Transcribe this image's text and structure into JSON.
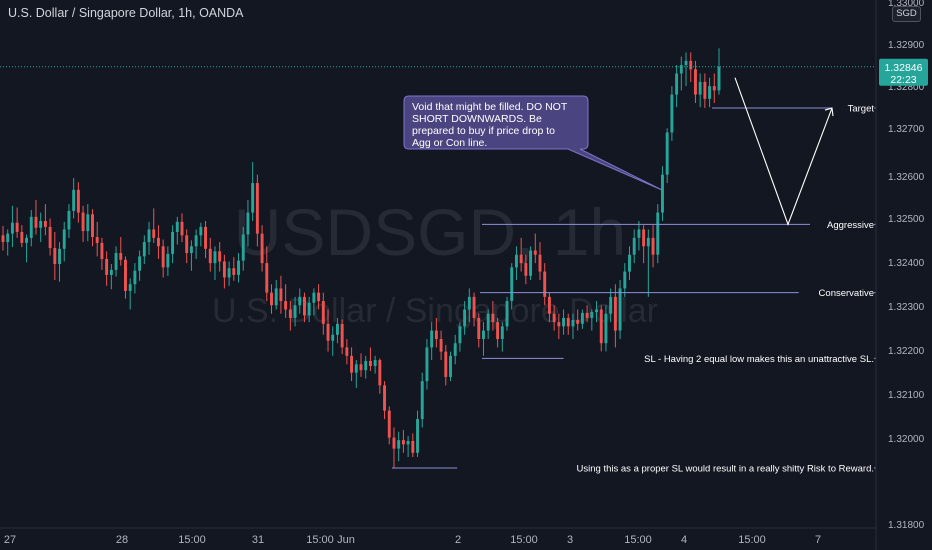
{
  "header": {
    "title": "U.S. Dollar / Singapore Dollar, 1h, OANDA",
    "currency": "SGD"
  },
  "watermark": {
    "symbol": "USDSGD, 1h",
    "description": "U.S. Dollar / Singapore Dollar"
  },
  "colors": {
    "background": "#131722",
    "grid": "#1e222d",
    "up": "#26a69a",
    "down": "#ef5350",
    "level_line": "#8e90d8",
    "label_bg": "#7e57c2",
    "last_price_bg": "#26a69a"
  },
  "last_price": {
    "value": 1.32846,
    "label": "1.32846",
    "countdown": "22:23"
  },
  "annotation": {
    "lines": [
      "Void that might be filled. DO NOT",
      "SHORT DOWNWARDS. Be",
      "prepared to buy if price drop to",
      "Agg or Con line."
    ]
  },
  "levels": [
    {
      "name": "Target",
      "value": 1.32748,
      "label": "1.32748",
      "text": "Target"
    },
    {
      "name": "Aggressive",
      "value": 1.32472,
      "label": "1.32472",
      "text": "Aggressive"
    },
    {
      "name": "Conservative",
      "value": 1.3231,
      "label": "1.32310",
      "text": "Conservative"
    },
    {
      "name": "SL",
      "value": 1.32154,
      "label": "1.32154",
      "text": "SL - Having 2 equal low makes this an unattractive SL."
    },
    {
      "name": "Low",
      "value": 1.31894,
      "label": "1.31894",
      "text": "Using this as a proper SL would result in a really shitty Risk to Reward."
    }
  ],
  "chart_data": {
    "type": "candlestick",
    "title": "U.S. Dollar / Singapore Dollar, 1h, OANDA",
    "y_axis": {
      "range": [
        1.3179,
        1.3302
      ],
      "ticks": [
        "1.33000",
        "1.32900",
        "1.32800",
        "1.32700",
        "1.32600",
        "1.32500",
        "1.32400",
        "1.32300",
        "1.32200",
        "1.32100",
        "1.32000",
        "1.31800"
      ]
    },
    "x_axis": {
      "ticks": [
        "27",
        "28",
        "15:00",
        "31",
        "15:00",
        "Jun",
        "2",
        "15:00",
        "3",
        "15:00",
        "4",
        "15:00",
        "7"
      ]
    },
    "candles": [
      [
        1.32446,
        1.32468,
        1.3241,
        1.3243
      ],
      [
        1.3243,
        1.3246,
        1.32398,
        1.3245
      ],
      [
        1.3245,
        1.32516,
        1.32418,
        1.32476
      ],
      [
        1.32476,
        1.32512,
        1.3244,
        1.32454
      ],
      [
        1.32454,
        1.3247,
        1.32418,
        1.32428
      ],
      [
        1.32428,
        1.32448,
        1.32382,
        1.3244
      ],
      [
        1.3244,
        1.32506,
        1.3242,
        1.3249
      ],
      [
        1.3249,
        1.3253,
        1.32448,
        1.32464
      ],
      [
        1.32464,
        1.325,
        1.3243,
        1.3248
      ],
      [
        1.3248,
        1.3252,
        1.32446,
        1.32466
      ],
      [
        1.32466,
        1.32486,
        1.32398,
        1.32416
      ],
      [
        1.32416,
        1.32454,
        1.3234,
        1.32378
      ],
      [
        1.32378,
        1.3243,
        1.32336,
        1.32414
      ],
      [
        1.32414,
        1.32478,
        1.32384,
        1.3246
      ],
      [
        1.3246,
        1.3252,
        1.3244,
        1.32504
      ],
      [
        1.32504,
        1.32582,
        1.32486,
        1.32554
      ],
      [
        1.32554,
        1.32572,
        1.32476,
        1.325
      ],
      [
        1.325,
        1.32516,
        1.3243,
        1.32456
      ],
      [
        1.32456,
        1.3252,
        1.32432,
        1.32496
      ],
      [
        1.32496,
        1.32508,
        1.3242,
        1.32442
      ],
      [
        1.32442,
        1.32478,
        1.32396,
        1.32428
      ],
      [
        1.32428,
        1.3244,
        1.32364,
        1.3239
      ],
      [
        1.3239,
        1.32408,
        1.32326,
        1.32352
      ],
      [
        1.32352,
        1.32378,
        1.32318,
        1.32364
      ],
      [
        1.32364,
        1.3242,
        1.32348,
        1.32404
      ],
      [
        1.32404,
        1.32442,
        1.32374,
        1.32388
      ],
      [
        1.32388,
        1.32396,
        1.32296,
        1.32314
      ],
      [
        1.32314,
        1.32344,
        1.3227,
        1.3233
      ],
      [
        1.3233,
        1.3238,
        1.32308,
        1.32362
      ],
      [
        1.32362,
        1.3241,
        1.32338,
        1.32396
      ],
      [
        1.32396,
        1.32446,
        1.32378,
        1.3243
      ],
      [
        1.3243,
        1.32478,
        1.324,
        1.3246
      ],
      [
        1.3246,
        1.3251,
        1.32428,
        1.3244
      ],
      [
        1.3244,
        1.3247,
        1.3239,
        1.3242
      ],
      [
        1.3242,
        1.32436,
        1.32346,
        1.3237
      ],
      [
        1.3237,
        1.3242,
        1.3235,
        1.32402
      ],
      [
        1.32402,
        1.3247,
        1.3238,
        1.32454
      ],
      [
        1.32454,
        1.3249,
        1.32424,
        1.32478
      ],
      [
        1.32478,
        1.32498,
        1.3243,
        1.32446
      ],
      [
        1.32446,
        1.3246,
        1.3238,
        1.32404
      ],
      [
        1.32404,
        1.32434,
        1.32362,
        1.3242
      ],
      [
        1.3242,
        1.3246,
        1.3239,
        1.32446
      ],
      [
        1.32446,
        1.32476,
        1.3242,
        1.32466
      ],
      [
        1.32466,
        1.3248,
        1.32392,
        1.32414
      ],
      [
        1.32414,
        1.3244,
        1.3236,
        1.3238
      ],
      [
        1.3238,
        1.3242,
        1.3234,
        1.32408
      ],
      [
        1.32408,
        1.3243,
        1.3236,
        1.32384
      ],
      [
        1.32384,
        1.324,
        1.3232,
        1.32346
      ],
      [
        1.32346,
        1.32384,
        1.32326,
        1.32368
      ],
      [
        1.32368,
        1.32394,
        1.32338,
        1.32352
      ],
      [
        1.32352,
        1.32404,
        1.32334,
        1.32386
      ],
      [
        1.32386,
        1.32466,
        1.32362,
        1.32448
      ],
      [
        1.32448,
        1.3253,
        1.3242,
        1.325
      ],
      [
        1.325,
        1.3262,
        1.3248,
        1.3257
      ],
      [
        1.3257,
        1.3259,
        1.3242,
        1.3245
      ],
      [
        1.3245,
        1.3247,
        1.3236,
        1.3238
      ],
      [
        1.3238,
        1.3242,
        1.3229,
        1.3231
      ],
      [
        1.3231,
        1.3233,
        1.3226,
        1.3228
      ],
      [
        1.3228,
        1.3234,
        1.3227,
        1.3232
      ],
      [
        1.3232,
        1.3235,
        1.3226,
        1.3229
      ],
      [
        1.3229,
        1.3233,
        1.3225,
        1.3227
      ],
      [
        1.3227,
        1.3229,
        1.3222,
        1.3225
      ],
      [
        1.3225,
        1.323,
        1.3223,
        1.3228
      ],
      [
        1.3228,
        1.3232,
        1.3226,
        1.323
      ],
      [
        1.323,
        1.3231,
        1.3224,
        1.32256
      ],
      [
        1.32256,
        1.323,
        1.3224,
        1.32286
      ],
      [
        1.32286,
        1.3232,
        1.32256,
        1.3231
      ],
      [
        1.3231,
        1.3233,
        1.3227,
        1.3229
      ],
      [
        1.3229,
        1.3231,
        1.3221,
        1.32236
      ],
      [
        1.32236,
        1.3227,
        1.3217,
        1.32196
      ],
      [
        1.32196,
        1.3223,
        1.3216,
        1.3221
      ],
      [
        1.3221,
        1.3225,
        1.3219,
        1.32236
      ],
      [
        1.32236,
        1.32246,
        1.32164,
        1.3218
      ],
      [
        1.3218,
        1.322,
        1.3214,
        1.3216
      ],
      [
        1.3216,
        1.3218,
        1.321,
        1.3212
      ],
      [
        1.3212,
        1.3215,
        1.32084,
        1.3214
      ],
      [
        1.3214,
        1.32166,
        1.3211,
        1.32126
      ],
      [
        1.32126,
        1.3216,
        1.32106,
        1.32148
      ],
      [
        1.32148,
        1.3218,
        1.32124,
        1.32136
      ],
      [
        1.32136,
        1.3216,
        1.32118,
        1.3215
      ],
      [
        1.3215,
        1.32154,
        1.3207,
        1.3209
      ],
      [
        1.3209,
        1.321,
        1.3201,
        1.3203
      ],
      [
        1.3203,
        1.3204,
        1.3195,
        1.31966
      ],
      [
        1.31966,
        1.3199,
        1.31894,
        1.3194
      ],
      [
        1.3194,
        1.3198,
        1.3191,
        1.3196
      ],
      [
        1.3196,
        1.31984,
        1.3193,
        1.3195
      ],
      [
        1.3195,
        1.3197,
        1.3192,
        1.31958
      ],
      [
        1.31958,
        1.31976,
        1.3192,
        1.3193
      ],
      [
        1.3193,
        1.3203,
        1.3192,
        1.3201
      ],
      [
        1.3201,
        1.3212,
        1.3199,
        1.321
      ],
      [
        1.321,
        1.322,
        1.3208,
        1.3218
      ],
      [
        1.3218,
        1.3224,
        1.3215,
        1.3222
      ],
      [
        1.3222,
        1.3225,
        1.3218,
        1.322
      ],
      [
        1.322,
        1.3222,
        1.3215,
        1.3217
      ],
      [
        1.3217,
        1.32186,
        1.3209,
        1.3211
      ],
      [
        1.3211,
        1.3217,
        1.321,
        1.3216
      ],
      [
        1.3216,
        1.3221,
        1.3214,
        1.3219
      ],
      [
        1.3219,
        1.3224,
        1.3217,
        1.3223
      ],
      [
        1.3223,
        1.3229,
        1.3221,
        1.3227
      ],
      [
        1.3227,
        1.3232,
        1.3224,
        1.323
      ],
      [
        1.323,
        1.3231,
        1.3223,
        1.3225
      ],
      [
        1.3225,
        1.3226,
        1.3218,
        1.322
      ],
      [
        1.322,
        1.3224,
        1.3216,
        1.3222
      ],
      [
        1.3222,
        1.3227,
        1.322,
        1.3226
      ],
      [
        1.3226,
        1.3229,
        1.3222,
        1.3224
      ],
      [
        1.3224,
        1.3225,
        1.3218,
        1.322
      ],
      [
        1.322,
        1.3224,
        1.3217,
        1.3223
      ],
      [
        1.3223,
        1.323,
        1.3222,
        1.3229
      ],
      [
        1.3229,
        1.3238,
        1.3227,
        1.3237
      ],
      [
        1.3237,
        1.3242,
        1.3234,
        1.324
      ],
      [
        1.324,
        1.3244,
        1.3236,
        1.3238
      ],
      [
        1.3238,
        1.324,
        1.3233,
        1.3235
      ],
      [
        1.3235,
        1.3242,
        1.3234,
        1.3241
      ],
      [
        1.3241,
        1.3245,
        1.3238,
        1.324
      ],
      [
        1.324,
        1.3243,
        1.3234,
        1.3236
      ],
      [
        1.3236,
        1.3238,
        1.3228,
        1.323
      ],
      [
        1.323,
        1.3231,
        1.3224,
        1.3226
      ],
      [
        1.3226,
        1.3228,
        1.3222,
        1.3224
      ],
      [
        1.3224,
        1.3226,
        1.322,
        1.3223
      ],
      [
        1.3223,
        1.3227,
        1.3221,
        1.3225
      ],
      [
        1.3225,
        1.3226,
        1.3221,
        1.3223
      ],
      [
        1.3223,
        1.3226,
        1.322,
        1.32245
      ],
      [
        1.32245,
        1.3227,
        1.3222,
        1.32236
      ],
      [
        1.32236,
        1.3227,
        1.32224,
        1.32262
      ],
      [
        1.32262,
        1.3228,
        1.3224,
        1.3225
      ],
      [
        1.3225,
        1.3227,
        1.3222,
        1.32264
      ],
      [
        1.32264,
        1.3229,
        1.3224,
        1.3227
      ],
      [
        1.3227,
        1.3228,
        1.3216,
        1.3219
      ],
      [
        1.3219,
        1.3228,
        1.3216,
        1.3226
      ],
      [
        1.3226,
        1.3232,
        1.3224,
        1.323
      ],
      [
        1.323,
        1.3233,
        1.3218,
        1.3222
      ],
      [
        1.3222,
        1.3234,
        1.322,
        1.3232
      ],
      [
        1.3232,
        1.3238,
        1.323,
        1.3236
      ],
      [
        1.3236,
        1.3242,
        1.3234,
        1.324
      ],
      [
        1.324,
        1.3246,
        1.3238,
        1.3244
      ],
      [
        1.3244,
        1.3248,
        1.3241,
        1.3246
      ],
      [
        1.3246,
        1.3247,
        1.3238,
        1.3242
      ],
      [
        1.3242,
        1.3246,
        1.323,
        1.3244
      ],
      [
        1.3244,
        1.3247,
        1.3237,
        1.324
      ],
      [
        1.324,
        1.3252,
        1.3238,
        1.325
      ],
      [
        1.325,
        1.3261,
        1.3248,
        1.3259
      ],
      [
        1.3259,
        1.327,
        1.3257,
        1.3269
      ],
      [
        1.3269,
        1.328,
        1.3267,
        1.3278
      ],
      [
        1.3278,
        1.3285,
        1.3275,
        1.3283
      ],
      [
        1.3283,
        1.3287,
        1.3279,
        1.3285
      ],
      [
        1.3285,
        1.3288,
        1.328,
        1.3286
      ],
      [
        1.3286,
        1.3288,
        1.3281,
        1.3284
      ],
      [
        1.3284,
        1.3286,
        1.3276,
        1.3278
      ],
      [
        1.3278,
        1.3283,
        1.3275,
        1.3281
      ],
      [
        1.3281,
        1.3283,
        1.32748,
        1.3277
      ],
      [
        1.3277,
        1.3282,
        1.3275,
        1.328
      ],
      [
        1.328,
        1.3283,
        1.3276,
        1.3279
      ],
      [
        1.3279,
        1.3289,
        1.3278,
        1.32846
      ]
    ],
    "projection": [
      {
        "x": "4",
        "y": 1.3282
      },
      {
        "x": "15:00 (Jun 4)",
        "y": 1.32472
      },
      {
        "x": "7",
        "y": 1.32748
      }
    ],
    "grid": false
  }
}
